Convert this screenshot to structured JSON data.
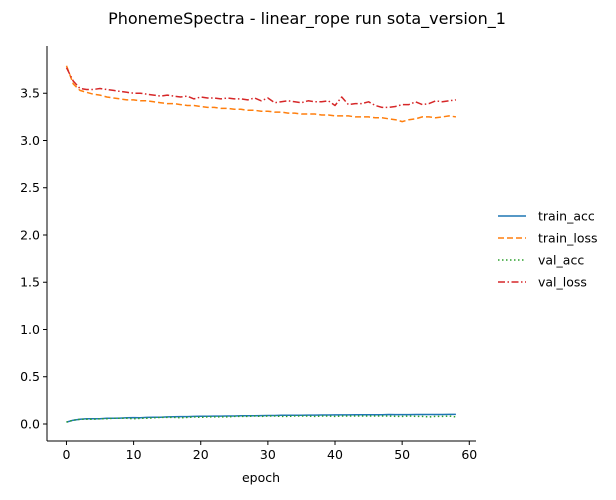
{
  "chart_data": {
    "type": "line",
    "title": "PhonemeSpectra - linear_rope run sota_version_1",
    "xlabel": "epoch",
    "ylabel": "",
    "xlim": [
      -2.9,
      61
    ],
    "ylim": [
      -0.18,
      4.0
    ],
    "xticks": [
      0,
      10,
      20,
      30,
      40,
      50,
      60
    ],
    "yticks": [
      0.0,
      0.5,
      1.0,
      1.5,
      2.0,
      2.5,
      3.0,
      3.5
    ],
    "ytick_labels": [
      "0.0",
      "0.5",
      "1.0",
      "1.5",
      "2.0",
      "2.5",
      "3.0",
      "3.5"
    ],
    "grid": false,
    "legend_position": "right",
    "x": [
      0,
      1,
      2,
      3,
      4,
      5,
      6,
      7,
      8,
      9,
      10,
      11,
      12,
      13,
      14,
      15,
      16,
      17,
      18,
      19,
      20,
      21,
      22,
      23,
      24,
      25,
      26,
      27,
      28,
      29,
      30,
      31,
      32,
      33,
      34,
      35,
      36,
      37,
      38,
      39,
      40,
      41,
      42,
      43,
      44,
      45,
      46,
      47,
      48,
      49,
      50,
      51,
      52,
      53,
      54,
      55,
      56,
      57,
      58
    ],
    "series": [
      {
        "name": "train_acc",
        "color": "#1f77b4",
        "dash": "solid",
        "values": [
          0.02,
          0.04,
          0.05,
          0.055,
          0.055,
          0.055,
          0.06,
          0.06,
          0.062,
          0.065,
          0.068,
          0.066,
          0.07,
          0.072,
          0.072,
          0.075,
          0.077,
          0.078,
          0.078,
          0.08,
          0.082,
          0.082,
          0.083,
          0.083,
          0.085,
          0.085,
          0.087,
          0.088,
          0.088,
          0.089,
          0.09,
          0.09,
          0.092,
          0.092,
          0.093,
          0.093,
          0.094,
          0.094,
          0.095,
          0.095,
          0.096,
          0.096,
          0.096,
          0.097,
          0.097,
          0.097,
          0.098,
          0.098,
          0.1,
          0.099,
          0.099,
          0.099,
          0.1,
          0.1,
          0.1,
          0.1,
          0.1,
          0.101,
          0.101
        ]
      },
      {
        "name": "train_loss",
        "color": "#ff7f0e",
        "dash": "dashed",
        "values": [
          3.79,
          3.6,
          3.53,
          3.51,
          3.49,
          3.48,
          3.46,
          3.45,
          3.44,
          3.43,
          3.43,
          3.42,
          3.42,
          3.41,
          3.4,
          3.39,
          3.39,
          3.38,
          3.37,
          3.37,
          3.36,
          3.35,
          3.35,
          3.34,
          3.34,
          3.33,
          3.33,
          3.32,
          3.32,
          3.31,
          3.31,
          3.3,
          3.3,
          3.29,
          3.29,
          3.28,
          3.28,
          3.28,
          3.27,
          3.27,
          3.26,
          3.26,
          3.26,
          3.25,
          3.25,
          3.25,
          3.24,
          3.24,
          3.23,
          3.22,
          3.2,
          3.22,
          3.23,
          3.25,
          3.25,
          3.24,
          3.25,
          3.26,
          3.25
        ]
      },
      {
        "name": "val_acc",
        "color": "#2ca02c",
        "dash": "dotted",
        "values": [
          0.02,
          0.04,
          0.05,
          0.05,
          0.05,
          0.055,
          0.055,
          0.06,
          0.06,
          0.06,
          0.055,
          0.06,
          0.06,
          0.065,
          0.07,
          0.07,
          0.07,
          0.065,
          0.07,
          0.075,
          0.07,
          0.075,
          0.075,
          0.075,
          0.075,
          0.08,
          0.08,
          0.08,
          0.085,
          0.08,
          0.085,
          0.085,
          0.08,
          0.08,
          0.085,
          0.085,
          0.085,
          0.08,
          0.085,
          0.085,
          0.08,
          0.085,
          0.085,
          0.085,
          0.085,
          0.085,
          0.085,
          0.085,
          0.085,
          0.08,
          0.08,
          0.085,
          0.08,
          0.08,
          0.075,
          0.08,
          0.08,
          0.085,
          0.075
        ]
      },
      {
        "name": "val_loss",
        "color": "#d62728",
        "dash": "dashdot",
        "values": [
          3.77,
          3.63,
          3.55,
          3.54,
          3.54,
          3.55,
          3.54,
          3.53,
          3.52,
          3.51,
          3.5,
          3.5,
          3.49,
          3.48,
          3.47,
          3.48,
          3.47,
          3.46,
          3.47,
          3.44,
          3.46,
          3.45,
          3.45,
          3.44,
          3.45,
          3.44,
          3.44,
          3.43,
          3.45,
          3.42,
          3.45,
          3.4,
          3.41,
          3.42,
          3.41,
          3.4,
          3.42,
          3.41,
          3.41,
          3.42,
          3.37,
          3.46,
          3.38,
          3.39,
          3.39,
          3.41,
          3.37,
          3.35,
          3.35,
          3.36,
          3.38,
          3.38,
          3.41,
          3.38,
          3.39,
          3.42,
          3.41,
          3.42,
          3.43
        ]
      }
    ]
  }
}
